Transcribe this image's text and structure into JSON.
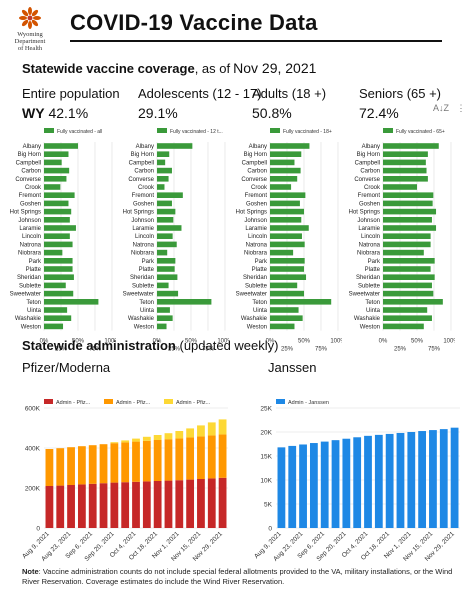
{
  "header": {
    "logo_lines": [
      "Wyoming",
      "Department",
      "of Health"
    ],
    "title": "COVID-19 Vaccine Data"
  },
  "coverage": {
    "heading_bold": "Statewide vaccine coverage",
    "heading_rest": ", as of",
    "date": "Nov 29, 2021",
    "panels": [
      {
        "label": "Entire population",
        "prefix": "WY",
        "value": "42.1%",
        "legend": "Fully vaccinated - all"
      },
      {
        "label": "Adolescents (12 - 17)",
        "prefix": "",
        "value": "29.1%",
        "legend": "Fully vaccinated - 12 t..."
      },
      {
        "label": "Adults (18 +)",
        "prefix": "",
        "value": "50.8%",
        "legend": "Fully vaccinated - 18+"
      },
      {
        "label": "Seniors (65 +)",
        "prefix": "",
        "value": "72.4%",
        "legend": "Fully vaccinated - 65+"
      }
    ],
    "toolbar": {
      "sort_label": "A↓Z",
      "more_label": "⋮"
    },
    "tick_labels": [
      "0%",
      "25%",
      "50%",
      "75%",
      "100%"
    ]
  },
  "administration": {
    "heading_bold": "Statewide administration",
    "heading_rest": " (updated weekly)",
    "pfizer_title": "Pfizer/Moderna",
    "janssen_title": "Janssen",
    "pfizer_legend": [
      "Admin - Pfiz...",
      "Admin - Pfiz...",
      "Admin - Pfiz..."
    ],
    "janssen_legend": [
      "Admin - Janssen"
    ],
    "pfizer_y_ticks": [
      "0",
      "200K",
      "400K",
      "600K"
    ],
    "janssen_y_ticks": [
      "0",
      "5K",
      "10K",
      "15K",
      "20K",
      "25K"
    ]
  },
  "note": {
    "label": "Note",
    "text": ": Vaccine administration counts do not include special federal allotments provided to the VA, military installations, or the Wind River Reservation. Coverage estimates do include the Wind River Reservation."
  },
  "colors": {
    "coverage_bar": "#3a9a3a",
    "pfizer_dose1": "#c62828",
    "pfizer_dose2": "#ff9800",
    "pfizer_booster": "#fdd835",
    "janssen": "#1e88e5",
    "grid": "#dddddd"
  },
  "chart_data": [
    {
      "type": "bar",
      "orientation": "horizontal",
      "title": "Entire population",
      "categories": [
        "Albany",
        "Big Horn",
        "Campbell",
        "Carbon",
        "Converse",
        "Crook",
        "Fremont",
        "Goshen",
        "Hot Springs",
        "Johnson",
        "Laramie",
        "Lincoln",
        "Natrona",
        "Niobrara",
        "Park",
        "Platte",
        "Sheridan",
        "Sublette",
        "Sweetwater",
        "Teton",
        "Uinta",
        "Washakie",
        "Weston"
      ],
      "series": [
        {
          "name": "Fully vaccinated - all",
          "values": [
            50,
            36,
            26,
            37,
            33,
            24,
            45,
            36,
            40,
            38,
            47,
            38,
            42,
            27,
            42,
            42,
            44,
            32,
            43,
            80,
            34,
            40,
            28
          ]
        }
      ],
      "xlim": [
        0,
        100
      ]
    },
    {
      "type": "bar",
      "orientation": "horizontal",
      "title": "Adolescents (12 - 17)",
      "categories": [
        "Albany",
        "Big Horn",
        "Campbell",
        "Carbon",
        "Converse",
        "Crook",
        "Fremont",
        "Goshen",
        "Hot Springs",
        "Johnson",
        "Laramie",
        "Lincoln",
        "Natrona",
        "Niobrara",
        "Park",
        "Platte",
        "Sheridan",
        "Sublette",
        "Sweetwater",
        "Teton",
        "Uinta",
        "Washakie",
        "Weston"
      ],
      "series": [
        {
          "name": "Fully vaccinated - 12 t...",
          "values": [
            52,
            18,
            12,
            22,
            17,
            11,
            38,
            22,
            27,
            24,
            36,
            23,
            29,
            15,
            27,
            26,
            30,
            17,
            31,
            80,
            19,
            23,
            14
          ]
        }
      ],
      "xlim": [
        0,
        100
      ]
    },
    {
      "type": "bar",
      "orientation": "horizontal",
      "title": "Adults (18 +)",
      "categories": [
        "Albany",
        "Big Horn",
        "Campbell",
        "Carbon",
        "Converse",
        "Crook",
        "Fremont",
        "Goshen",
        "Hot Springs",
        "Johnson",
        "Laramie",
        "Lincoln",
        "Natrona",
        "Niobrara",
        "Park",
        "Platte",
        "Sheridan",
        "Sublette",
        "Sweetwater",
        "Teton",
        "Uinta",
        "Washakie",
        "Weston"
      ],
      "series": [
        {
          "name": "Fully vaccinated - 18+",
          "values": [
            58,
            46,
            36,
            45,
            40,
            31,
            52,
            44,
            50,
            46,
            57,
            47,
            51,
            34,
            51,
            50,
            53,
            40,
            50,
            90,
            42,
            48,
            36
          ]
        }
      ],
      "xlim": [
        0,
        100
      ]
    },
    {
      "type": "bar",
      "orientation": "horizontal",
      "title": "Seniors (65 +)",
      "categories": [
        "Albany",
        "Big Horn",
        "Campbell",
        "Carbon",
        "Converse",
        "Crook",
        "Fremont",
        "Goshen",
        "Hot Springs",
        "Johnson",
        "Laramie",
        "Lincoln",
        "Natrona",
        "Niobrara",
        "Park",
        "Platte",
        "Sheridan",
        "Sublette",
        "Sweetwater",
        "Teton",
        "Uinta",
        "Washakie",
        "Weston"
      ],
      "series": [
        {
          "name": "Fully vaccinated - 65+",
          "values": [
            82,
            66,
            63,
            64,
            66,
            50,
            74,
            73,
            78,
            72,
            78,
            70,
            70,
            60,
            76,
            70,
            76,
            72,
            74,
            88,
            65,
            72,
            60
          ]
        }
      ],
      "xlim": [
        0,
        100
      ]
    },
    {
      "type": "bar",
      "stacked": true,
      "title": "Pfizer/Moderna",
      "x": [
        "Aug 9, 2021",
        "Aug 16, 2021",
        "Aug 23, 2021",
        "Aug 30, 2021",
        "Sep 6, 2021",
        "Sep 13, 2021",
        "Sep 20, 2021",
        "Sep 27, 2021",
        "Oct 4, 2021",
        "Oct 11, 2021",
        "Oct 18, 2021",
        "Oct 25, 2021",
        "Nov 1, 2021",
        "Nov 8, 2021",
        "Nov 15, 2021",
        "Nov 22, 2021",
        "Nov 29, 2021"
      ],
      "x_tick_labels": [
        "Aug 9, 2021",
        "Aug 23, 2021",
        "Sep 6, 2021",
        "Sep 20, 2021",
        "Oct 4, 2021",
        "Oct 18, 2021",
        "Nov 1, 2021",
        "Nov 15, 2021",
        "Nov 29, 2021"
      ],
      "series": [
        {
          "name": "Admin - Pfiz...",
          "values": [
            210000,
            212000,
            215000,
            218000,
            221000,
            224000,
            227000,
            229000,
            231000,
            233000,
            235000,
            237000,
            239000,
            242000,
            245000,
            248000,
            251000
          ]
        },
        {
          "name": "Admin - Pfiz...",
          "values": [
            185000,
            187000,
            189000,
            191000,
            193000,
            195000,
            197000,
            199000,
            201000,
            203000,
            205000,
            207000,
            209000,
            211000,
            213000,
            215000,
            217000
          ]
        },
        {
          "name": "Admin - Pfiz...",
          "values": [
            0,
            0,
            0,
            0,
            0,
            0,
            5000,
            10000,
            15000,
            20000,
            25000,
            30000,
            37000,
            45000,
            55000,
            65000,
            75000
          ]
        }
      ],
      "ylim": [
        0,
        600000
      ]
    },
    {
      "type": "bar",
      "title": "Janssen",
      "x": [
        "Aug 9, 2021",
        "Aug 16, 2021",
        "Aug 23, 2021",
        "Aug 30, 2021",
        "Sep 6, 2021",
        "Sep 13, 2021",
        "Sep 20, 2021",
        "Sep 27, 2021",
        "Oct 4, 2021",
        "Oct 11, 2021",
        "Oct 18, 2021",
        "Oct 25, 2021",
        "Nov 1, 2021",
        "Nov 8, 2021",
        "Nov 15, 2021",
        "Nov 22, 2021",
        "Nov 29, 2021"
      ],
      "x_tick_labels": [
        "Aug 9, 2021",
        "Aug 23, 2021",
        "Sep 6, 2021",
        "Sep 20, 2021",
        "Oct 4, 2021",
        "Oct 18, 2021",
        "Nov 1, 2021",
        "Nov 15, 2021",
        "Nov 29, 2021"
      ],
      "series": [
        {
          "name": "Admin - Janssen",
          "values": [
            16800,
            17100,
            17400,
            17700,
            18000,
            18300,
            18600,
            18900,
            19200,
            19400,
            19600,
            19800,
            20000,
            20200,
            20400,
            20600,
            20900
          ]
        }
      ],
      "ylim": [
        0,
        25000
      ]
    }
  ]
}
